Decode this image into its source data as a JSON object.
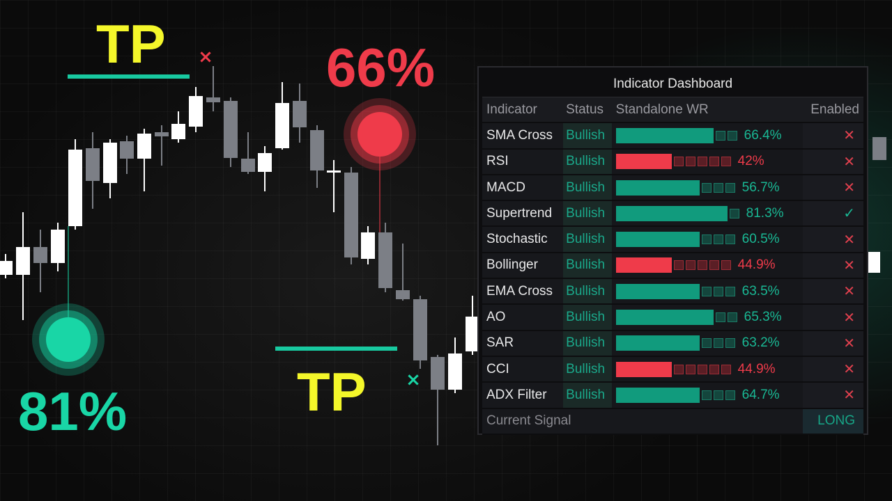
{
  "labels": {
    "tp_top": "TP",
    "tp_bottom": "TP",
    "percent_red": "66%",
    "percent_green": "81%"
  },
  "markers": {
    "sell_exit": "×",
    "buy_exit": "×"
  },
  "colors": {
    "bullish": "#ffffff",
    "bearish": "#7c7f86",
    "tp_line": "#18c9a0",
    "red_dot": "#ef3b4a",
    "green_dot": "#19d6a6"
  },
  "dashboard": {
    "title": "Indicator Dashboard",
    "headers": {
      "indicator": "Indicator",
      "status": "Status",
      "wr": "Standalone WR",
      "enabled": "Enabled"
    },
    "rows": [
      {
        "name": "SMA Cross",
        "status": "Bullish",
        "wr": "66.4%",
        "fill": 0.664,
        "color": "teal",
        "enabled": "✕"
      },
      {
        "name": "RSI",
        "status": "Bullish",
        "wr": "42%",
        "fill": 0.42,
        "color": "red",
        "enabled": "✕"
      },
      {
        "name": "MACD",
        "status": "Bullish",
        "wr": "56.7%",
        "fill": 0.567,
        "color": "teal",
        "enabled": "✕"
      },
      {
        "name": "Supertrend",
        "status": "Bullish",
        "wr": "81.3%",
        "fill": 0.813,
        "color": "teal",
        "enabled": "✓"
      },
      {
        "name": "Stochastic",
        "status": "Bullish",
        "wr": "60.5%",
        "fill": 0.605,
        "color": "teal",
        "enabled": "✕"
      },
      {
        "name": "Bollinger",
        "status": "Bullish",
        "wr": "44.9%",
        "fill": 0.449,
        "color": "red",
        "enabled": "✕"
      },
      {
        "name": "EMA Cross",
        "status": "Bullish",
        "wr": "63.5%",
        "fill": 0.635,
        "color": "teal",
        "enabled": "✕"
      },
      {
        "name": "AO",
        "status": "Bullish",
        "wr": "65.3%",
        "fill": 0.653,
        "color": "teal",
        "enabled": "✕"
      },
      {
        "name": "SAR",
        "status": "Bullish",
        "wr": "63.2%",
        "fill": 0.632,
        "color": "teal",
        "enabled": "✕"
      },
      {
        "name": "CCI",
        "status": "Bullish",
        "wr": "44.9%",
        "fill": 0.449,
        "color": "red",
        "enabled": "✕"
      },
      {
        "name": "ADX Filter",
        "status": "Bullish",
        "wr": "64.7%",
        "fill": 0.647,
        "color": "teal",
        "enabled": "✕"
      }
    ],
    "signal_label": "Current Signal",
    "signal_value": "LONG"
  }
}
